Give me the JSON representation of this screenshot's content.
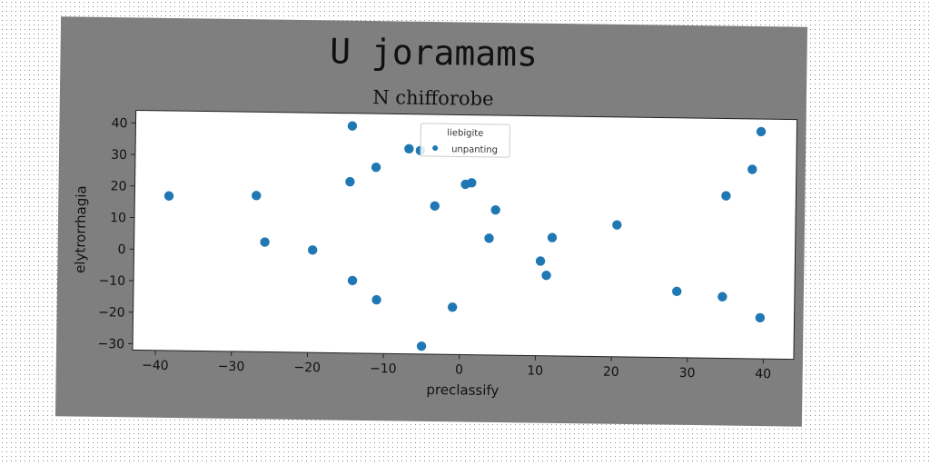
{
  "chart_data": {
    "type": "scatter",
    "suptitle": "U joramams",
    "title": "N chifforobe",
    "xlabel": "preclassify",
    "ylabel": "elytrorrhagia",
    "xlim": [
      -43,
      44
    ],
    "ylim": [
      -32,
      44
    ],
    "xticks": [
      -40,
      -30,
      -20,
      -10,
      0,
      10,
      20,
      30,
      40
    ],
    "yticks": [
      -30,
      -20,
      -10,
      0,
      10,
      20,
      30,
      40
    ],
    "grid": false,
    "legend": {
      "title": "liebigite",
      "placement": "top-center"
    },
    "series": [
      {
        "name": "unpanting",
        "color": "#1f77b4",
        "points": [
          [
            -38.5,
            17
          ],
          [
            -27,
            17.5
          ],
          [
            -25.8,
            2.8
          ],
          [
            -19.5,
            0.5
          ],
          [
            -14.5,
            40
          ],
          [
            -14.7,
            22.3
          ],
          [
            -14.2,
            -9
          ],
          [
            -11.3,
            27
          ],
          [
            -11,
            -15
          ],
          [
            -7,
            33
          ],
          [
            -5.5,
            32.5
          ],
          [
            -5,
            -29.5
          ],
          [
            -3.5,
            15
          ],
          [
            -1,
            -17
          ],
          [
            0.5,
            22
          ],
          [
            1.3,
            22.5
          ],
          [
            3.7,
            5
          ],
          [
            4.5,
            14
          ],
          [
            10.5,
            -2
          ],
          [
            11.3,
            -6.5
          ],
          [
            12,
            5.5
          ],
          [
            20.5,
            9.8
          ],
          [
            28.5,
            -11
          ],
          [
            34.5,
            -12.5
          ],
          [
            34.8,
            19.5
          ],
          [
            38.2,
            28
          ],
          [
            39.3,
            40
          ],
          [
            39.5,
            -19
          ]
        ]
      }
    ]
  }
}
